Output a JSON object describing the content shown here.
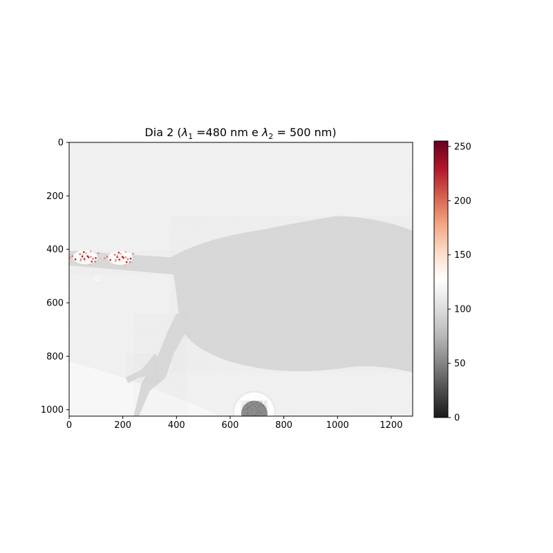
{
  "chart_data": {
    "type": "heatmap",
    "title": "Dia 2 (λ1 =480 nm e λ2 = 500 nm)",
    "title_parts": {
      "prefix": "Dia 2 (",
      "symbol": "λ",
      "sub1": "1",
      "mid": " =480 nm e ",
      "sub2": "2",
      "suffix": " = 500 nm)"
    },
    "xlabel": "",
    "ylabel": "",
    "xlim": [
      0,
      1280
    ],
    "ylim": [
      1024,
      0
    ],
    "x_ticks": [
      0,
      200,
      400,
      600,
      800,
      1000,
      1200
    ],
    "y_ticks": [
      0,
      200,
      400,
      600,
      800,
      1000
    ],
    "colorbar": {
      "colormap": "RdGy_r",
      "range": [
        0,
        255
      ],
      "ticks": [
        0,
        50,
        100,
        150,
        200,
        250
      ],
      "colors": [
        "#1a1a1a",
        "#4d4d4d",
        "#878787",
        "#bababa",
        "#e0e0e0",
        "#ffffff",
        "#fddbc7",
        "#f4a582",
        "#d6604d",
        "#b2182b",
        "#67001f"
      ]
    },
    "image_description_values": {
      "background_level": 118,
      "body_level": 98,
      "well_level": 50,
      "hotspot_level": 200
    },
    "grid": false,
    "legend": "none"
  }
}
